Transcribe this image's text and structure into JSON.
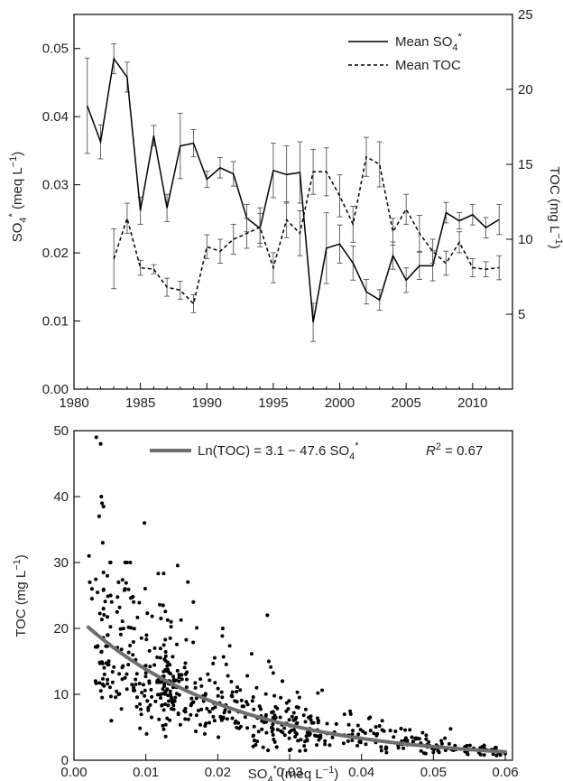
{
  "chart_data": [
    {
      "type": "line",
      "panel": "top",
      "x_ticks": [
        "1980",
        "1985",
        "1990",
        "1995",
        "2000",
        "2005",
        "2010"
      ],
      "xlim": [
        1980,
        2013
      ],
      "y_left": {
        "label_main": "SO",
        "label_sub": "4",
        "label_sup": "*",
        "label_unit": " (meq L",
        "label_exp": "−1",
        "label_close": ")",
        "ylim": [
          0,
          0.055
        ],
        "ticks": [
          "0.00",
          "0.01",
          "0.02",
          "0.03",
          "0.04",
          "0.05"
        ]
      },
      "y_right": {
        "label_main": "TOC (mg L",
        "label_exp": "−1",
        "label_close": ")",
        "ylim": [
          0,
          25
        ],
        "ticks": [
          "5",
          "10",
          "15",
          "20",
          "25"
        ]
      },
      "legend": {
        "so4_main": "Mean SO",
        "so4_sub": "4",
        "so4_sup": "*",
        "toc": "Mean TOC",
        "placement": "top-right"
      },
      "series": [
        {
          "name": "Mean SO4*",
          "axis": "left",
          "style": "solid",
          "x": [
            1981,
            1982,
            1983,
            1984,
            1985,
            1986,
            1987,
            1988,
            1989,
            1990,
            1991,
            1992,
            1993,
            1994,
            1995,
            1996,
            1997,
            1998,
            1999,
            2000,
            2001,
            2002,
            2003,
            2004,
            2005,
            2006,
            2007,
            2008,
            2009,
            2010,
            2011,
            2012
          ],
          "values": [
            0.0416,
            0.0363,
            0.0485,
            0.0458,
            0.0262,
            0.0372,
            0.0266,
            0.0357,
            0.0361,
            0.0308,
            0.0325,
            0.0316,
            0.0251,
            0.0236,
            0.0321,
            0.0315,
            0.0318,
            0.0098,
            0.0207,
            0.0213,
            0.0185,
            0.0143,
            0.0131,
            0.0196,
            0.016,
            0.0181,
            0.0181,
            0.0259,
            0.0247,
            0.0256,
            0.0237,
            0.0249
          ],
          "err": [
            0.007,
            0.0025,
            0.0022,
            0.0022,
            0.002,
            0.0015,
            0.002,
            0.0048,
            0.002,
            0.0012,
            0.0015,
            0.0018,
            0.002,
            0.0022,
            0.004,
            0.0042,
            0.0045,
            0.0028,
            0.0052,
            0.0028,
            0.0025,
            0.0018,
            0.0015,
            0.002,
            0.0018,
            0.002,
            0.0022,
            0.0015,
            0.0012,
            0.0015,
            0.0015,
            0.0022
          ]
        },
        {
          "name": "Mean TOC",
          "axis": "right",
          "style": "dashed",
          "x": [
            1983,
            1984,
            1985,
            1986,
            1987,
            1988,
            1989,
            1990,
            1991,
            1992,
            1993,
            1994,
            1995,
            1996,
            1997,
            1998,
            1999,
            2000,
            2001,
            2002,
            2003,
            2004,
            2005,
            2006,
            2007,
            2008,
            2009,
            2010,
            2011,
            2012
          ],
          "values": [
            8.7,
            11.4,
            8.1,
            8.0,
            6.8,
            6.6,
            5.7,
            9.5,
            9.2,
            10.0,
            10.4,
            10.8,
            8.1,
            11.3,
            10.4,
            14.5,
            14.5,
            12.9,
            11.0,
            15.5,
            15.0,
            10.5,
            12.0,
            10.4,
            9.2,
            8.4,
            9.8,
            8.1,
            8.0,
            8.1
          ],
          "err": [
            2.0,
            1.0,
            0.5,
            0.3,
            0.6,
            0.6,
            0.6,
            0.8,
            0.8,
            1.0,
            1.0,
            1.3,
            1.0,
            1.2,
            1.5,
            1.5,
            1.6,
            1.4,
            1.2,
            1.3,
            1.5,
            0.9,
            1.0,
            1.2,
            0.8,
            0.8,
            0.7,
            0.6,
            0.5,
            0.8
          ]
        }
      ]
    },
    {
      "type": "scatter",
      "panel": "bottom",
      "xlim": [
        0,
        0.061
      ],
      "ylim": [
        0,
        50
      ],
      "x_ticks": [
        "0.00",
        "0.01",
        "0.02",
        "0.03",
        "0.04",
        "0.05",
        "0.06"
      ],
      "y_ticks": [
        "0",
        "10",
        "20",
        "30",
        "40",
        "50"
      ],
      "xlabel": {
        "main": "SO",
        "sub": "4",
        "sup": "*",
        "unit": " (meq L",
        "exp": "−1",
        "close": ")"
      },
      "ylabel": {
        "main": "TOC (mg L",
        "exp": "−1",
        "close": ")"
      },
      "fit": {
        "label_main": "Ln(TOC) = 3.1 − 47.6 SO",
        "label_sub": "4",
        "label_sup": "*",
        "r2_label": "R",
        "r2_exp": "2",
        "r2_value": " = 0.67",
        "intercept": 3.1,
        "slope": -47.6,
        "x_range": [
          0.002,
          0.06
        ],
        "color": "#6e6e6e"
      },
      "points": [
        [
          0.0031,
          49.0
        ],
        [
          0.0037,
          48.0
        ],
        [
          0.0038,
          40.0
        ],
        [
          0.0039,
          39.0
        ],
        [
          0.0041,
          38.5
        ],
        [
          0.0035,
          37.0
        ],
        [
          0.0098,
          36.0
        ],
        [
          0.004,
          33.0
        ],
        [
          0.0021,
          31.0
        ],
        [
          0.0051,
          30.0
        ],
        [
          0.0041,
          28.5
        ],
        [
          0.0062,
          27.0
        ],
        [
          0.0022,
          27.0
        ],
        [
          0.0025,
          26.0
        ],
        [
          0.0071,
          26.0
        ],
        [
          0.0041,
          25.8
        ],
        [
          0.0051,
          25.0
        ],
        [
          0.0082,
          24.8
        ],
        [
          0.0166,
          24.0
        ],
        [
          0.0025,
          24.5
        ],
        [
          0.0083,
          24.0
        ],
        [
          0.0124,
          23.5
        ],
        [
          0.0269,
          22.0
        ],
        [
          0.0041,
          23.0
        ],
        [
          0.006,
          22.5
        ],
        [
          0.0102,
          22.3
        ],
        [
          0.0121,
          21.5
        ],
        [
          0.0135,
          21.0
        ],
        [
          0.0207,
          20.0
        ],
        [
          0.0271,
          15.0
        ],
        [
          0.029,
          12.0
        ],
        [
          0.0312,
          8.0
        ],
        [
          0.034,
          6.0
        ],
        [
          0.0365,
          5.5
        ],
        [
          0.0385,
          7.0
        ],
        [
          0.0412,
          6.5
        ],
        [
          0.0425,
          5.2
        ],
        [
          0.044,
          4.5
        ],
        [
          0.0455,
          4.8
        ],
        [
          0.047,
          3.5
        ],
        [
          0.049,
          3.2
        ],
        [
          0.0512,
          2.5
        ],
        [
          0.053,
          2.2
        ],
        [
          0.0545,
          2.0
        ],
        [
          0.0556,
          1.8
        ],
        [
          0.0575,
          1.5
        ],
        [
          0.059,
          1.2
        ],
        [
          0.06,
          1.0
        ],
        [
          0.003,
          12.0
        ],
        [
          0.004,
          11.5
        ],
        [
          0.0052,
          6.0
        ],
        [
          0.0062,
          10.0
        ],
        [
          0.0071,
          12.5
        ],
        [
          0.0083,
          11.0
        ],
        [
          0.0102,
          9.0
        ],
        [
          0.0108,
          6.5
        ],
        [
          0.0101,
          4.0
        ],
        [
          0.0182,
          4.0
        ],
        [
          0.0201,
          3.5
        ],
        [
          0.0251,
          3.0
        ],
        [
          0.0282,
          2.0
        ],
        [
          0.03,
          1.5
        ],
        [
          0.0322,
          1.5
        ],
        [
          0.027,
          1.5
        ]
      ]
    }
  ]
}
